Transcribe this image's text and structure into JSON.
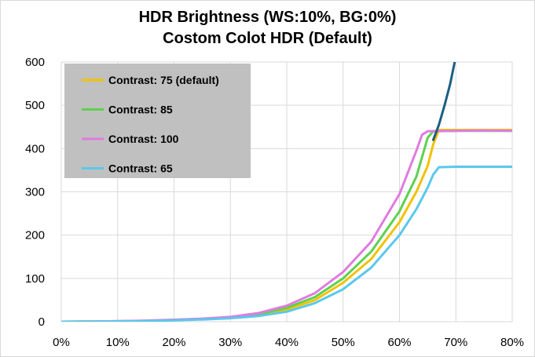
{
  "chart_data": {
    "type": "line",
    "title_lines": [
      "HDR Brightness (WS:10%, BG:0%)",
      "Costom Colot HDR (Default)"
    ],
    "xlabel": "",
    "ylabel": "",
    "xlim": [
      0,
      80
    ],
    "ylim": [
      0,
      600
    ],
    "x_ticks": [
      0,
      10,
      20,
      30,
      40,
      50,
      60,
      70,
      80
    ],
    "x_tick_labels": [
      "0%",
      "10%",
      "20%",
      "30%",
      "40%",
      "50%",
      "60%",
      "70%",
      "80%"
    ],
    "y_ticks": [
      0,
      100,
      200,
      300,
      400,
      500,
      600
    ],
    "y_tick_labels": [
      "0",
      "100",
      "200",
      "300",
      "400",
      "500",
      "600"
    ],
    "grid": "major both axes",
    "legend_position": "top-left",
    "series": [
      {
        "name": "Contrast: 75 (default)",
        "color": "#f2c200",
        "points": [
          [
            0,
            0
          ],
          [
            5,
            0.3
          ],
          [
            10,
            1
          ],
          [
            15,
            2
          ],
          [
            20,
            4
          ],
          [
            25,
            6
          ],
          [
            30,
            9
          ],
          [
            35,
            15
          ],
          [
            40,
            28
          ],
          [
            45,
            50
          ],
          [
            50,
            90
          ],
          [
            55,
            145
          ],
          [
            60,
            230
          ],
          [
            63,
            300
          ],
          [
            65,
            360
          ],
          [
            66,
            410
          ],
          [
            67,
            443
          ],
          [
            70,
            443
          ],
          [
            75,
            443
          ],
          [
            80,
            443
          ]
        ]
      },
      {
        "name": "Contrast: 85",
        "color": "#5ed14f",
        "points": [
          [
            0,
            0
          ],
          [
            5,
            0.3
          ],
          [
            10,
            1
          ],
          [
            15,
            2
          ],
          [
            20,
            4
          ],
          [
            25,
            6.5
          ],
          [
            30,
            10
          ],
          [
            35,
            17
          ],
          [
            40,
            32
          ],
          [
            45,
            57
          ],
          [
            50,
            100
          ],
          [
            55,
            162
          ],
          [
            60,
            255
          ],
          [
            63,
            335
          ],
          [
            64,
            380
          ],
          [
            65,
            425
          ],
          [
            66,
            440
          ],
          [
            70,
            441
          ],
          [
            75,
            441
          ],
          [
            80,
            441
          ]
        ]
      },
      {
        "name": "Contrast: 100",
        "color": "#e07be0",
        "points": [
          [
            0,
            0
          ],
          [
            5,
            0.3
          ],
          [
            10,
            1
          ],
          [
            15,
            2.5
          ],
          [
            20,
            4.5
          ],
          [
            25,
            7
          ],
          [
            30,
            11
          ],
          [
            35,
            20
          ],
          [
            40,
            37
          ],
          [
            45,
            66
          ],
          [
            50,
            115
          ],
          [
            55,
            185
          ],
          [
            60,
            295
          ],
          [
            63,
            395
          ],
          [
            64,
            432
          ],
          [
            65,
            440
          ],
          [
            70,
            441
          ],
          [
            75,
            442
          ],
          [
            80,
            441
          ]
        ]
      },
      {
        "name": "Contrast: 65",
        "color": "#5bc8ec",
        "points": [
          [
            0,
            0
          ],
          [
            5,
            0.2
          ],
          [
            10,
            0.8
          ],
          [
            15,
            1.5
          ],
          [
            20,
            3
          ],
          [
            25,
            5
          ],
          [
            30,
            8
          ],
          [
            35,
            13
          ],
          [
            40,
            23
          ],
          [
            45,
            43
          ],
          [
            50,
            75
          ],
          [
            55,
            125
          ],
          [
            60,
            200
          ],
          [
            63,
            260
          ],
          [
            65,
            310
          ],
          [
            66,
            340
          ],
          [
            67,
            357
          ],
          [
            70,
            358
          ],
          [
            75,
            358
          ],
          [
            80,
            358
          ]
        ]
      },
      {
        "name": "",
        "color": "#1a5f82",
        "legend": false,
        "points": [
          [
            66,
            420
          ],
          [
            67,
            455
          ],
          [
            68,
            500
          ],
          [
            69,
            550
          ],
          [
            69.8,
            600
          ]
        ]
      }
    ]
  }
}
